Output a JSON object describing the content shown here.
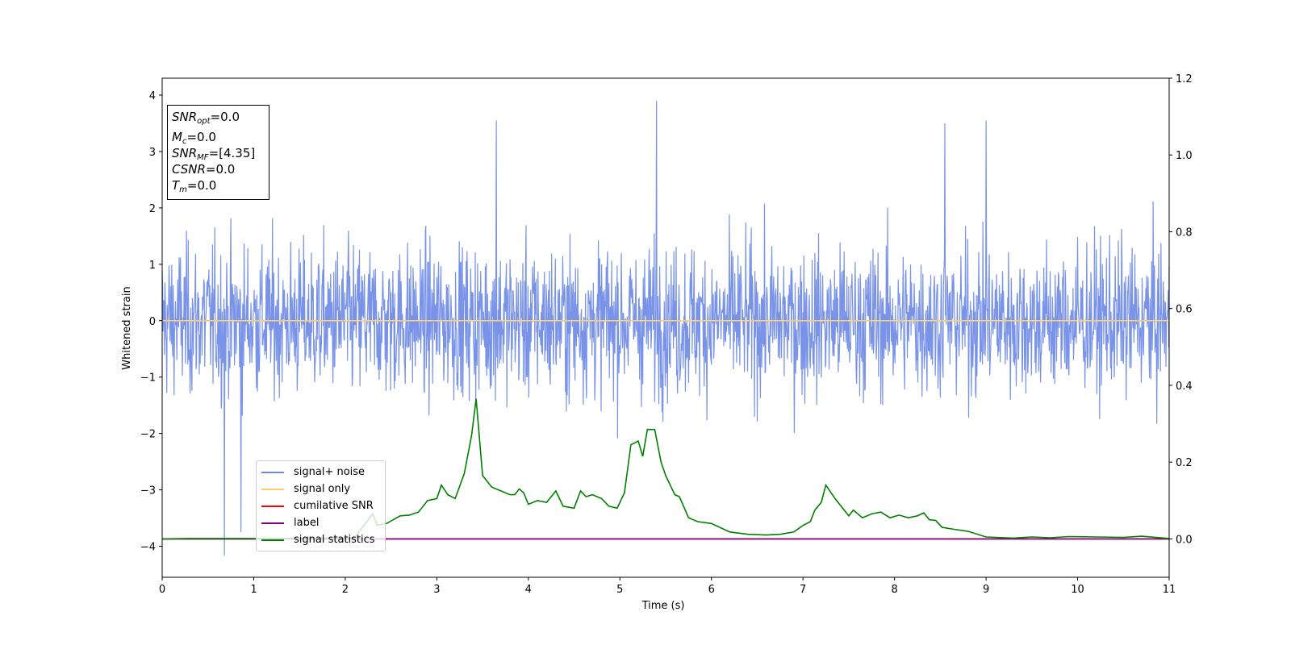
{
  "chart_data": {
    "type": "line",
    "xlabel": "Time (s)",
    "ylabel": "Whitened strain",
    "xlim": [
      0,
      11
    ],
    "ylim": [
      -4.55,
      4.3
    ],
    "ylim_right": [
      -0.1,
      1.2
    ],
    "x_ticks": [
      "0",
      "1",
      "2",
      "3",
      "4",
      "5",
      "6",
      "7",
      "8",
      "9",
      "10",
      "11"
    ],
    "y_ticks": [
      "−4",
      "−3",
      "−2",
      "−1",
      "0",
      "1",
      "2",
      "3",
      "4"
    ],
    "y_right_ticks": [
      "0.0",
      "0.2",
      "0.4",
      "0.6",
      "0.8",
      "1.0",
      "1.2"
    ],
    "legend_location": "lower-left",
    "series": [
      {
        "name": "signal+ noise",
        "color": "#6a87e6",
        "axis": "left",
        "description_values": {
          "typical_range": [
            -2.3,
            2.2
          ],
          "peaks": [
            [
              5.4,
              3.9
            ],
            [
              3.65,
              3.55
            ],
            [
              8.55,
              3.5
            ],
            [
              9.0,
              3.55
            ],
            [
              0.68,
              -4.17
            ],
            [
              0.86,
              -3.75
            ]
          ]
        }
      },
      {
        "name": "signal only",
        "color": "#ffcc66",
        "axis": "left",
        "x": [
          0,
          11
        ],
        "y": [
          0,
          0
        ]
      },
      {
        "name": "cumilative SNR",
        "color": "#ff0000",
        "axis": "right",
        "x": [
          0,
          11
        ],
        "y": [
          0,
          0
        ]
      },
      {
        "name": "label",
        "color": "#800080",
        "axis": "right",
        "x": [
          0,
          11
        ],
        "y": [
          0,
          0
        ]
      },
      {
        "name": "signal statistics",
        "color": "#008000",
        "axis": "right",
        "x": [
          0,
          0.3,
          0.6,
          0.9,
          1.2,
          1.5,
          1.8,
          2.1,
          2.3,
          2.35,
          2.45,
          2.6,
          2.7,
          2.8,
          2.9,
          3.0,
          3.05,
          3.12,
          3.2,
          3.3,
          3.38,
          3.43,
          3.5,
          3.6,
          3.7,
          3.8,
          3.85,
          3.9,
          3.95,
          4.0,
          4.1,
          4.2,
          4.3,
          4.38,
          4.5,
          4.57,
          4.63,
          4.7,
          4.8,
          4.88,
          4.97,
          5.05,
          5.12,
          5.2,
          5.25,
          5.3,
          5.38,
          5.45,
          5.5,
          5.6,
          5.65,
          5.75,
          5.85,
          6.0,
          6.2,
          6.4,
          6.6,
          6.75,
          6.9,
          7.0,
          7.08,
          7.13,
          7.2,
          7.25,
          7.35,
          7.5,
          7.55,
          7.65,
          7.75,
          7.85,
          7.95,
          8.05,
          8.15,
          8.25,
          8.32,
          8.38,
          8.45,
          8.52,
          8.65,
          8.8,
          9.0,
          9.3,
          9.5,
          9.7,
          9.9,
          10.2,
          10.5,
          10.7,
          11.0
        ],
        "y": [
          0.0,
          0.001,
          0.001,
          0.001,
          0.001,
          0.002,
          0.002,
          0.003,
          0.065,
          0.035,
          0.04,
          0.06,
          0.062,
          0.07,
          0.1,
          0.105,
          0.14,
          0.115,
          0.105,
          0.17,
          0.27,
          0.365,
          0.165,
          0.135,
          0.125,
          0.115,
          0.115,
          0.13,
          0.12,
          0.09,
          0.1,
          0.095,
          0.125,
          0.085,
          0.08,
          0.125,
          0.11,
          0.115,
          0.105,
          0.085,
          0.08,
          0.12,
          0.245,
          0.255,
          0.215,
          0.285,
          0.285,
          0.2,
          0.165,
          0.115,
          0.11,
          0.055,
          0.045,
          0.04,
          0.018,
          0.012,
          0.01,
          0.012,
          0.018,
          0.035,
          0.045,
          0.075,
          0.095,
          0.14,
          0.105,
          0.06,
          0.075,
          0.055,
          0.065,
          0.07,
          0.055,
          0.062,
          0.055,
          0.06,
          0.068,
          0.05,
          0.048,
          0.03,
          0.025,
          0.02,
          0.005,
          0.002,
          0.005,
          0.003,
          0.006,
          0.005,
          0.004,
          0.007,
          0.001
        ]
      }
    ]
  },
  "infobox": {
    "snr_opt_base": "SNR",
    "snr_opt_sub": "opt",
    "snr_opt_value": "=0.0",
    "mc_base": "M",
    "mc_sub": "c",
    "mc_value": "=0.0",
    "snr_mf_base": "SNR",
    "snr_mf_sub": "MF",
    "snr_mf_value": "=[4.35]",
    "csnr_base": "CSNR",
    "csnr_value": "=0.0",
    "tm_base": "T",
    "tm_sub": "m",
    "tm_value": "=0.0"
  }
}
